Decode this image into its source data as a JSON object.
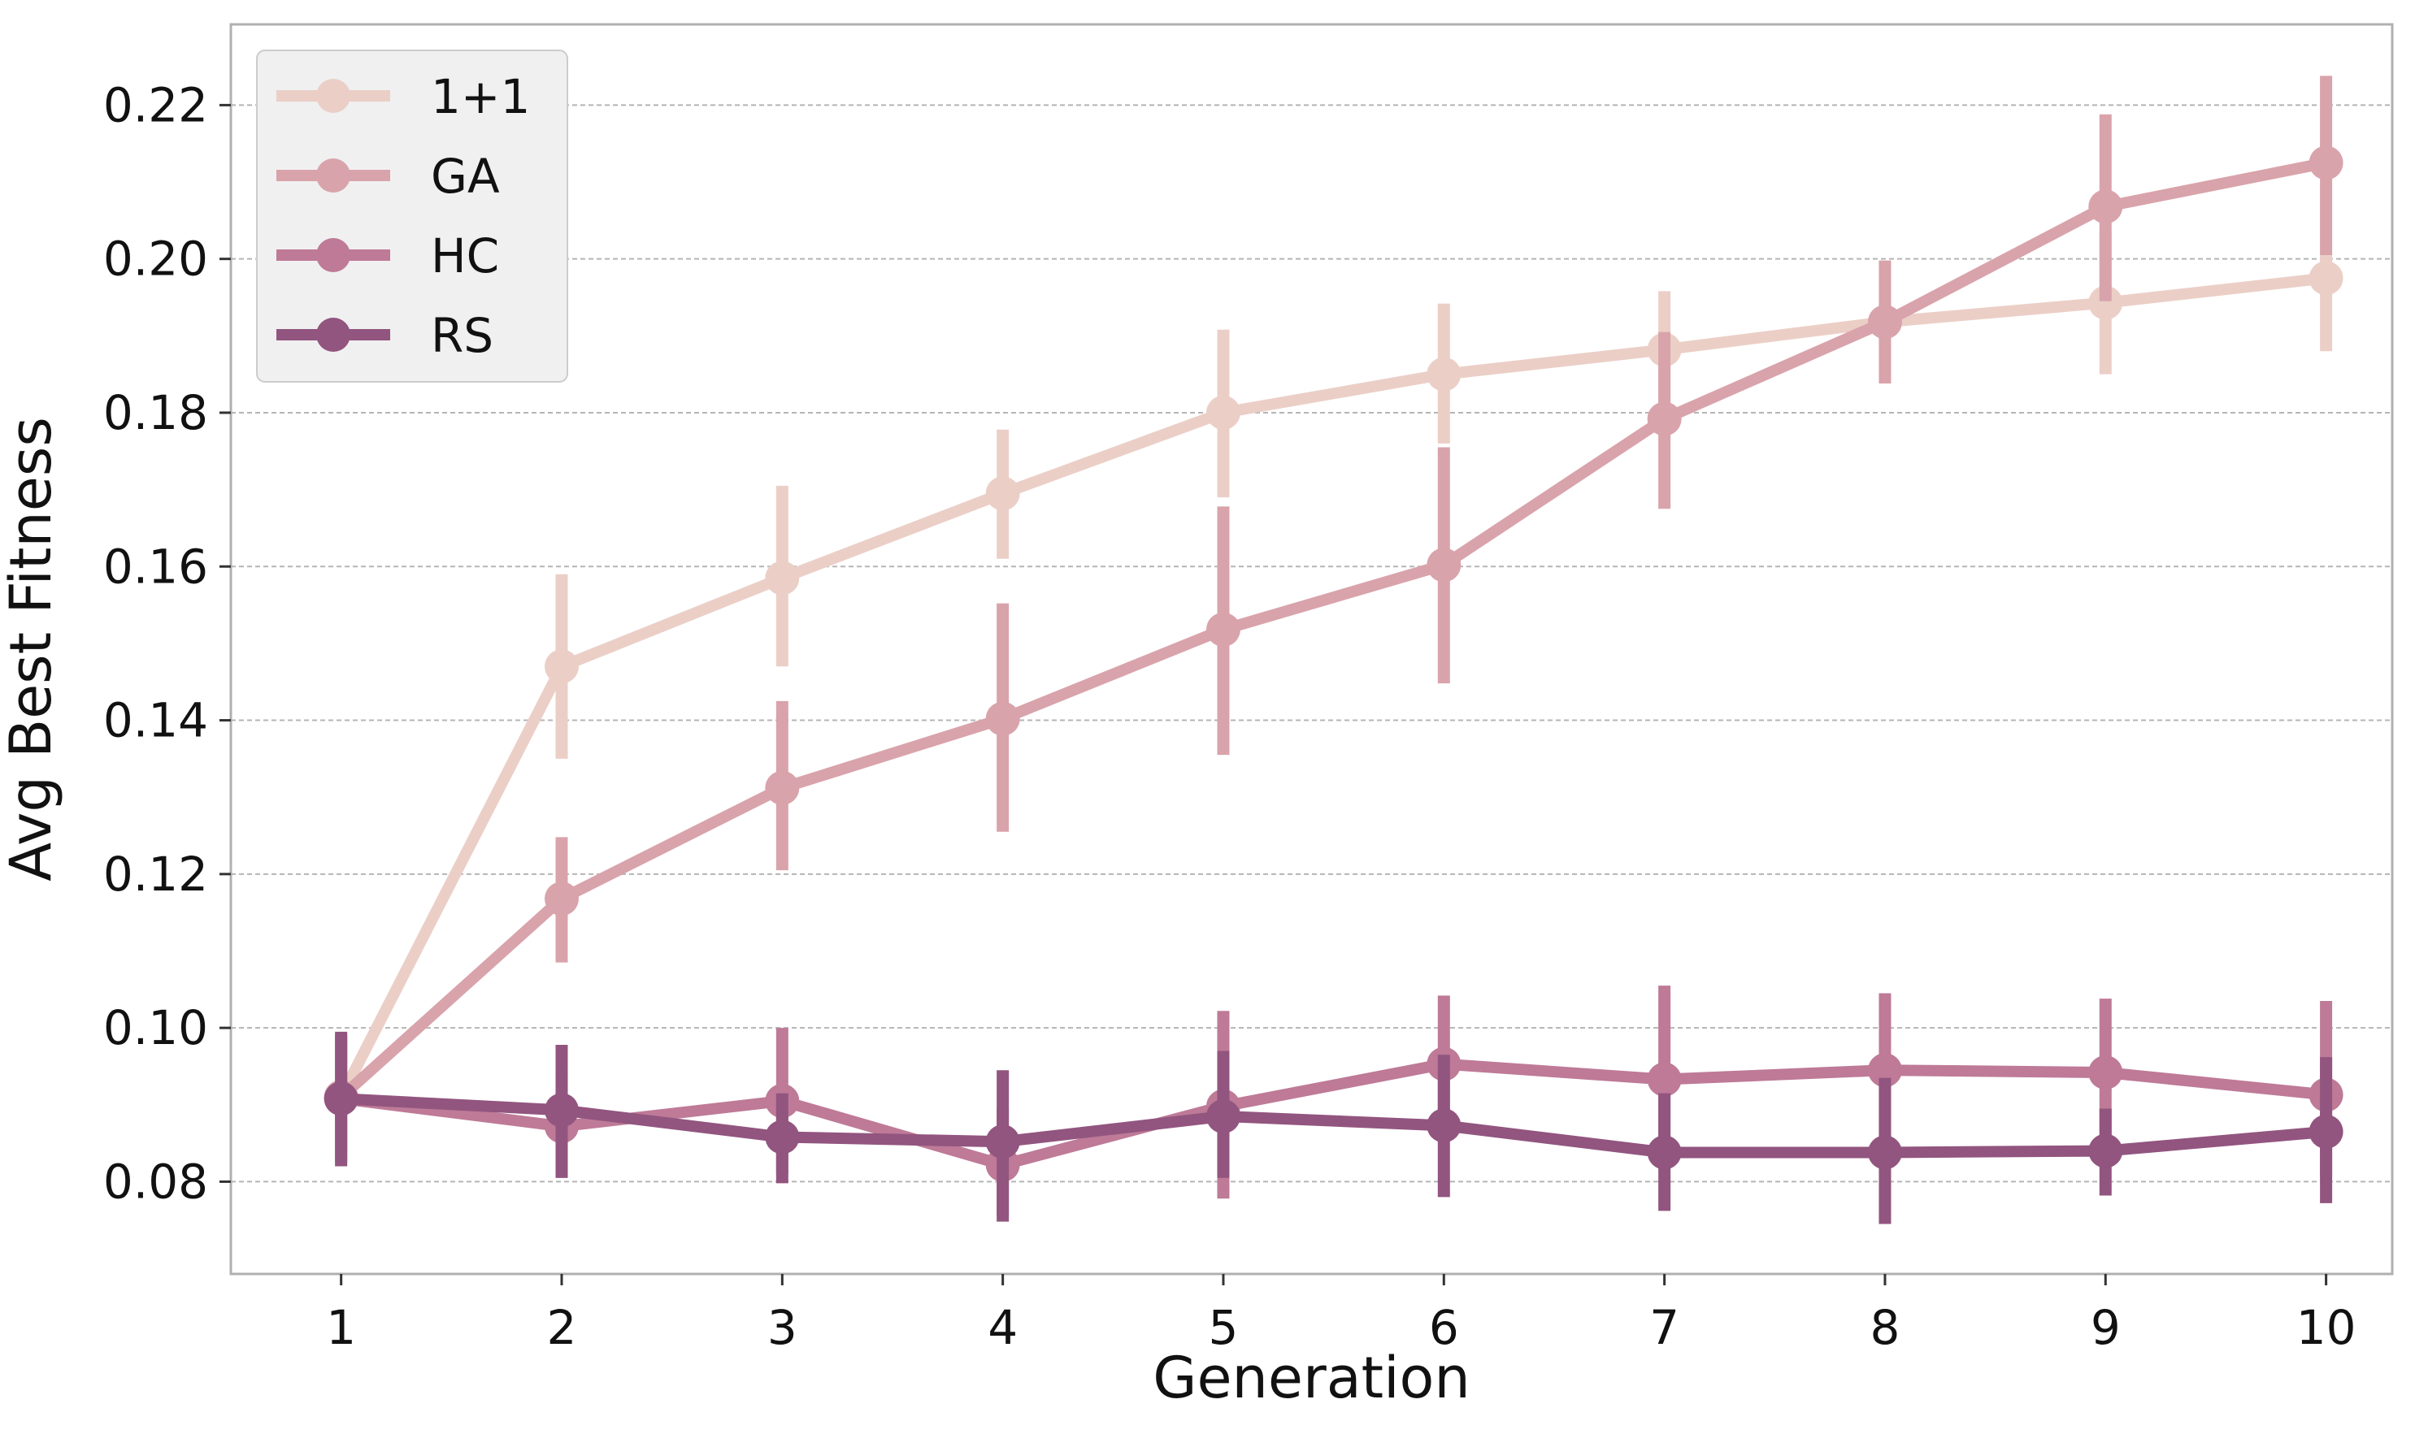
{
  "chart_data": {
    "type": "line",
    "xlabel": "Generation",
    "ylabel": "Avg Best Fitness",
    "x": [
      1,
      2,
      3,
      4,
      5,
      6,
      7,
      8,
      9,
      10
    ],
    "xticks": [
      "1",
      "2",
      "3",
      "4",
      "5",
      "6",
      "7",
      "8",
      "9",
      "10"
    ],
    "xlim": [
      0.5,
      10.3
    ],
    "ylim": [
      0.068,
      0.2305
    ],
    "yticks": [
      "0.08",
      "0.10",
      "0.12",
      "0.14",
      "0.16",
      "0.18",
      "0.20",
      "0.22"
    ],
    "grid": "horizontal dashed",
    "legend_position": "top-left",
    "series": [
      {
        "name": "1+1",
        "color": "#ebcfc7",
        "values": [
          0.091,
          0.147,
          0.1585,
          0.1695,
          0.18,
          0.185,
          0.1882,
          0.1918,
          0.1943,
          0.1975
        ],
        "err_low": [
          0.082,
          0.135,
          0.147,
          0.161,
          0.169,
          0.176,
          0.18,
          0.184,
          0.185,
          0.188
        ],
        "err_high": [
          0.099,
          0.159,
          0.1705,
          0.1778,
          0.1908,
          0.1942,
          0.1958,
          0.1995,
          0.2035,
          0.2008
        ]
      },
      {
        "name": "GA",
        "color": "#d9a3ab",
        "values": [
          0.091,
          0.1168,
          0.1312,
          0.1402,
          0.1518,
          0.1602,
          0.1792,
          0.1918,
          0.2068,
          0.2125
        ],
        "err_low": [
          0.083,
          0.1085,
          0.1205,
          0.1255,
          0.1355,
          0.1448,
          0.1675,
          0.1838,
          0.1945,
          0.2005
        ],
        "err_high": [
          0.099,
          0.1248,
          0.1425,
          0.1552,
          0.1678,
          0.1755,
          0.1905,
          0.1998,
          0.2188,
          0.2238
        ]
      },
      {
        "name": "HC",
        "color": "#be7a97",
        "values": [
          0.0908,
          0.0872,
          0.0905,
          0.0822,
          0.0898,
          0.0953,
          0.0933,
          0.0945,
          0.0942,
          0.0913
        ],
        "err_low": [
          0.0825,
          0.0805,
          0.081,
          0.0755,
          0.0778,
          0.0868,
          0.0845,
          0.0845,
          0.0848,
          0.0808
        ],
        "err_high": [
          0.0992,
          0.0945,
          0.1,
          0.0895,
          0.1022,
          0.1042,
          0.1055,
          0.1045,
          0.1038,
          0.1035
        ]
      },
      {
        "name": "RS",
        "color": "#92557f",
        "values": [
          0.0908,
          0.0893,
          0.0858,
          0.0852,
          0.0885,
          0.0873,
          0.0838,
          0.0838,
          0.084,
          0.0865
        ],
        "err_low": [
          0.082,
          0.0805,
          0.0798,
          0.0748,
          0.0805,
          0.078,
          0.0762,
          0.0745,
          0.0782,
          0.0772
        ],
        "err_high": [
          0.0995,
          0.0978,
          0.0915,
          0.0945,
          0.097,
          0.0965,
          0.0915,
          0.0935,
          0.0895,
          0.0962
        ]
      }
    ]
  }
}
